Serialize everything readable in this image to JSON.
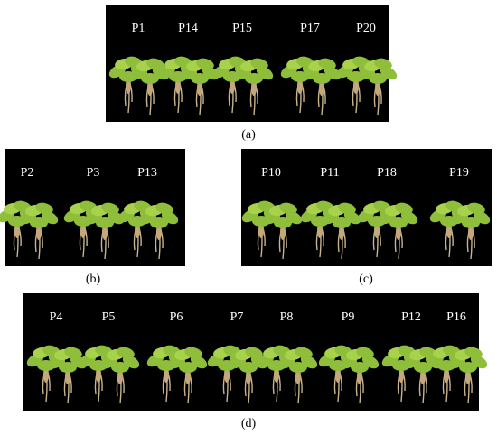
{
  "panels": [
    {
      "caption": "(a)",
      "plants": [
        "P1",
        "P14",
        "P15",
        "P17",
        "P20"
      ]
    },
    {
      "caption": "(b)",
      "plants": [
        "P2",
        "P3",
        "P13"
      ]
    },
    {
      "caption": "(c)",
      "plants": [
        "P10",
        "P11",
        "P18",
        "P19"
      ]
    },
    {
      "caption": "(d)",
      "plants": [
        "P4",
        "P5",
        "P6",
        "P7",
        "P8",
        "P9",
        "P12",
        "P16"
      ]
    }
  ]
}
